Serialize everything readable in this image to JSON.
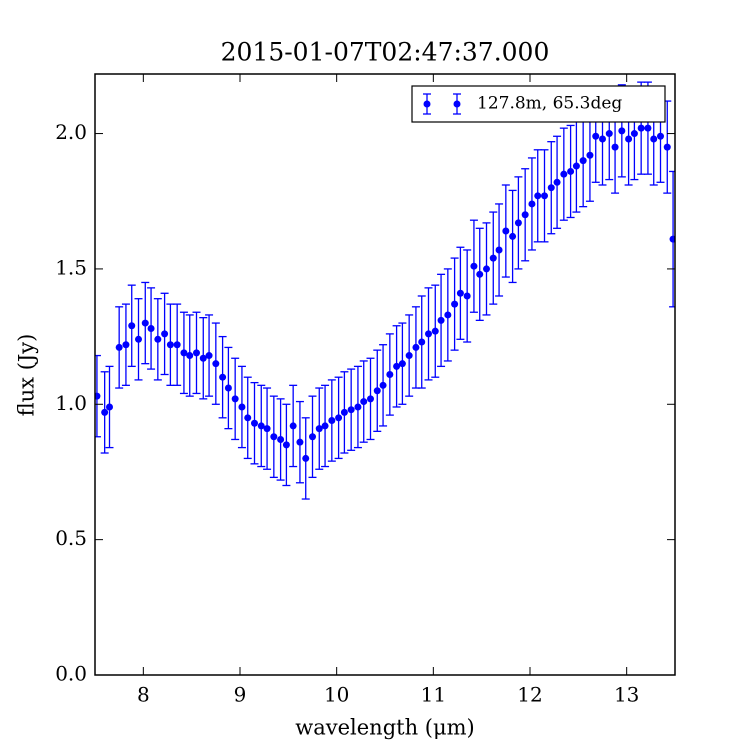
{
  "chart_data": {
    "type": "errorbar",
    "title": "2015-01-07T02:47:37.000",
    "x_label": "wavelength (μm)",
    "y_label": "flux (Jy)",
    "x": [
      7.52,
      7.6,
      7.65,
      7.75,
      7.82,
      7.88,
      7.95,
      8.02,
      8.08,
      8.15,
      8.22,
      8.28,
      8.35,
      8.42,
      8.48,
      8.55,
      8.62,
      8.68,
      8.75,
      8.82,
      8.88,
      8.95,
      9.02,
      9.08,
      9.15,
      9.22,
      9.28,
      9.35,
      9.42,
      9.48,
      9.55,
      9.62,
      9.68,
      9.75,
      9.82,
      9.88,
      9.95,
      10.02,
      10.08,
      10.15,
      10.22,
      10.28,
      10.35,
      10.42,
      10.48,
      10.55,
      10.62,
      10.68,
      10.75,
      10.82,
      10.88,
      10.95,
      11.02,
      11.08,
      11.15,
      11.22,
      11.28,
      11.35,
      11.42,
      11.48,
      11.55,
      11.62,
      11.68,
      11.75,
      11.82,
      11.88,
      11.95,
      12.02,
      12.08,
      12.15,
      12.22,
      12.28,
      12.35,
      12.42,
      12.48,
      12.55,
      12.62,
      12.68,
      12.75,
      12.82,
      12.88,
      12.95,
      13.02,
      13.08,
      13.15,
      13.22,
      13.28,
      13.35,
      13.42,
      13.48
    ],
    "series": [
      {
        "name": "127.8m, 65.3deg",
        "color": "#0000ff",
        "values": [
          1.03,
          0.97,
          0.99,
          1.21,
          1.22,
          1.29,
          1.24,
          1.3,
          1.28,
          1.24,
          1.26,
          1.22,
          1.22,
          1.19,
          1.18,
          1.19,
          1.17,
          1.18,
          1.15,
          1.1,
          1.06,
          1.02,
          0.99,
          0.95,
          0.93,
          0.92,
          0.91,
          0.88,
          0.87,
          0.85,
          0.92,
          0.86,
          0.8,
          0.88,
          0.91,
          0.92,
          0.94,
          0.95,
          0.97,
          0.98,
          0.99,
          1.01,
          1.02,
          1.05,
          1.07,
          1.11,
          1.14,
          1.15,
          1.18,
          1.21,
          1.23,
          1.26,
          1.27,
          1.31,
          1.33,
          1.37,
          1.41,
          1.4,
          1.51,
          1.48,
          1.5,
          1.54,
          1.57,
          1.64,
          1.62,
          1.67,
          1.7,
          1.74,
          1.77,
          1.77,
          1.8,
          1.82,
          1.85,
          1.86,
          1.88,
          1.9,
          1.92,
          1.99,
          1.98,
          2.0,
          1.95,
          2.01,
          1.98,
          2.0,
          2.02,
          2.02,
          1.98,
          1.99,
          1.95,
          1.61
        ],
        "errors": [
          0.15,
          0.15,
          0.15,
          0.15,
          0.15,
          0.15,
          0.15,
          0.15,
          0.15,
          0.15,
          0.15,
          0.15,
          0.15,
          0.15,
          0.15,
          0.15,
          0.15,
          0.15,
          0.15,
          0.15,
          0.15,
          0.15,
          0.15,
          0.15,
          0.15,
          0.15,
          0.15,
          0.15,
          0.15,
          0.15,
          0.15,
          0.15,
          0.15,
          0.15,
          0.15,
          0.15,
          0.15,
          0.15,
          0.15,
          0.15,
          0.15,
          0.15,
          0.15,
          0.15,
          0.15,
          0.15,
          0.15,
          0.15,
          0.15,
          0.15,
          0.17,
          0.17,
          0.17,
          0.17,
          0.17,
          0.17,
          0.17,
          0.17,
          0.17,
          0.17,
          0.17,
          0.17,
          0.17,
          0.17,
          0.17,
          0.17,
          0.17,
          0.17,
          0.17,
          0.17,
          0.17,
          0.17,
          0.17,
          0.17,
          0.17,
          0.17,
          0.17,
          0.17,
          0.17,
          0.17,
          0.17,
          0.17,
          0.17,
          0.17,
          0.17,
          0.17,
          0.17,
          0.17,
          0.17,
          0.25
        ]
      }
    ],
    "xlim": [
      7.5,
      13.5
    ],
    "ylim": [
      0,
      2.22
    ],
    "xticks": [
      8,
      9,
      10,
      11,
      12,
      13
    ],
    "yticks": [
      {
        "value": 0,
        "label": "0.0"
      },
      0.5,
      {
        "value": 1,
        "label": "1.0"
      },
      1.5,
      {
        "value": 2,
        "label": "2.0"
      }
    ],
    "legend": "upper right"
  }
}
